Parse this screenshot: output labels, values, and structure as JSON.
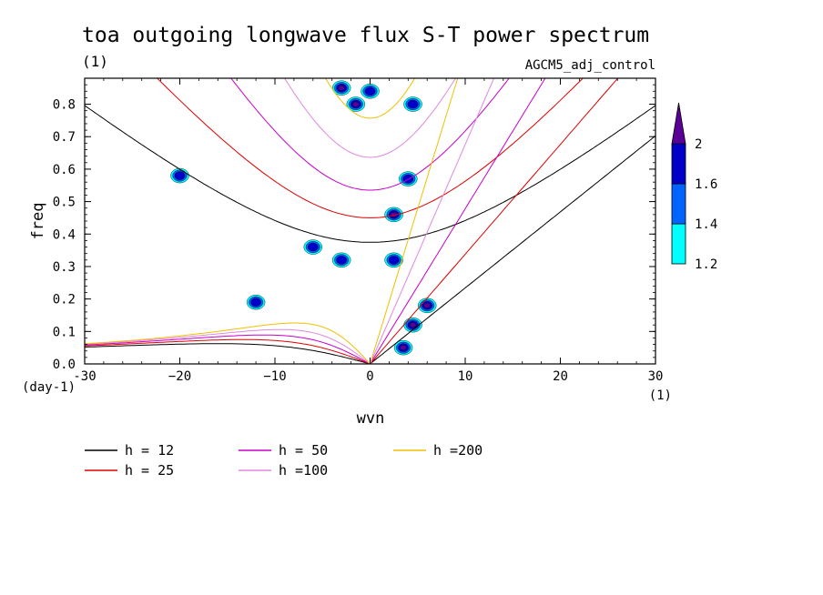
{
  "chart_data": {
    "type": "heatmap",
    "title": "toa outgoing longwave flux S-T power spectrum",
    "title_units": "(1)",
    "subtitle": "AGCM5_adj_control",
    "xlabel": "wvn",
    "ylabel": "freq",
    "x_unit": "(1)",
    "y_unit": "(day-1)",
    "xlim": [
      -30,
      30
    ],
    "ylim": [
      0,
      0.88
    ],
    "x_ticks": [
      -30,
      -20,
      -10,
      0,
      10,
      20,
      30
    ],
    "x_tick_labels": [
      "-30",
      "−20",
      "−10",
      "0",
      "10",
      "20",
      "30"
    ],
    "y_ticks": [
      0,
      0.1,
      0.2,
      0.3,
      0.4,
      0.5,
      0.6,
      0.7,
      0.8
    ],
    "y_tick_labels": [
      "0.0",
      "0.1",
      "0.2",
      "0.3",
      "0.4",
      "0.5",
      "0.6",
      "0.7",
      "0.8"
    ],
    "colorbar": {
      "levels": [
        1.2,
        1.4,
        1.6,
        2
      ],
      "labels": [
        "1.2",
        "1.4",
        "1.6",
        "2"
      ],
      "colors": [
        "#00ffff",
        "#0064ff",
        "#0000c8",
        "#5a0096"
      ]
    },
    "dispersion_curves": [
      {
        "name": "h = 12",
        "equivalent_depth": 12,
        "color": "#000000"
      },
      {
        "name": "h = 25",
        "equivalent_depth": 25,
        "color": "#e00000"
      },
      {
        "name": "h = 50",
        "equivalent_depth": 50,
        "color": "#c800c8"
      },
      {
        "name": "h =100",
        "equivalent_depth": 100,
        "color": "#e088e0"
      },
      {
        "name": "h =200",
        "equivalent_depth": 200,
        "color": "#f0c000"
      }
    ],
    "power_regions": [
      {
        "wvn": 4.5,
        "freq": 0.12,
        "level": 2
      },
      {
        "wvn": 6,
        "freq": 0.18,
        "level": 2
      },
      {
        "wvn": 3.5,
        "freq": 0.05,
        "level": 2
      },
      {
        "wvn": 2.5,
        "freq": 0.46,
        "level": 2
      },
      {
        "wvn": -1.5,
        "freq": 0.8,
        "level": 2
      },
      {
        "wvn": -3,
        "freq": 0.85,
        "level": 2
      },
      {
        "wvn": 0,
        "freq": 0.84,
        "level": 1.6
      },
      {
        "wvn": 4.5,
        "freq": 0.8,
        "level": 1.6
      },
      {
        "wvn": 4,
        "freq": 0.57,
        "level": 1.6
      },
      {
        "wvn": 2.5,
        "freq": 0.32,
        "level": 1.6
      },
      {
        "wvn": -6,
        "freq": 0.36,
        "level": 1.6
      },
      {
        "wvn": -3,
        "freq": 0.32,
        "level": 1.6
      },
      {
        "wvn": -12,
        "freq": 0.19,
        "level": 1.6
      },
      {
        "wvn": -20,
        "freq": 0.58,
        "level": 1.6
      }
    ]
  }
}
